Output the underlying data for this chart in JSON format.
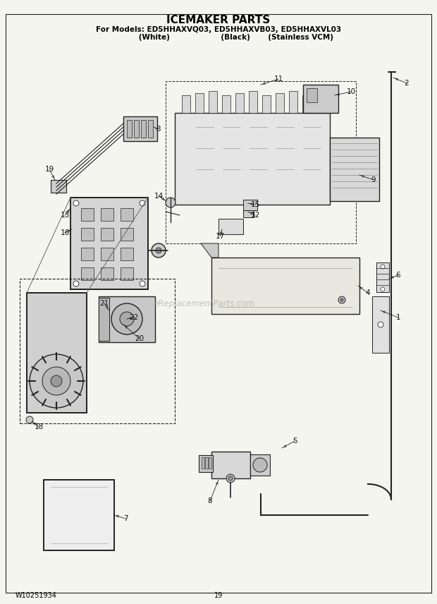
{
  "title": "ICEMAKER PARTS",
  "subtitle1": "For Models: ED5HHAXVQ03, ED5HHAXVB03, ED5HHAXVL03",
  "subtitle2": "              (White)                    (Black)       (Stainless VCM)",
  "footer_left": "W10251934",
  "footer_center": "19",
  "watermark": "eReplacementParts.com",
  "bg_color": "#f5f5f0",
  "line_color": "#222222",
  "title_fontsize": 11,
  "subtitle_fontsize": 7.5,
  "footer_fontsize": 7,
  "watermark_color": "#aaaaaa",
  "fig_width": 6.2,
  "fig_height": 8.56,
  "dpi": 100
}
